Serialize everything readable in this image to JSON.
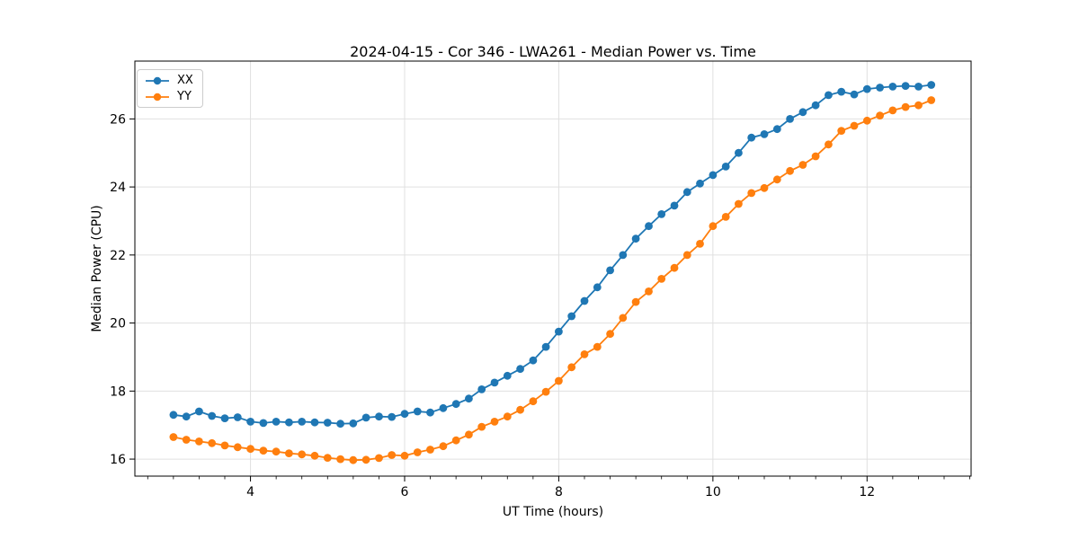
{
  "chart_data": {
    "type": "line",
    "title": "2024-04-15 - Cor 346 - LWA261 - Median Power vs. Time",
    "xlabel": "UT Time (hours)",
    "ylabel": "Median Power (CPU)",
    "xlim": [
      2.5,
      13.35
    ],
    "ylim": [
      15.5,
      27.7
    ],
    "xticks": [
      4,
      6,
      8,
      10,
      12
    ],
    "yticks": [
      16,
      18,
      20,
      22,
      24,
      26
    ],
    "x_minor_tick_step": 0.3333,
    "grid": true,
    "grid_color": "#e0e0e0",
    "legend_position": "upper left",
    "marker": "o",
    "x": [
      3.0,
      3.167,
      3.333,
      3.5,
      3.667,
      3.833,
      4.0,
      4.167,
      4.333,
      4.5,
      4.667,
      4.833,
      5.0,
      5.167,
      5.333,
      5.5,
      5.667,
      5.833,
      6.0,
      6.167,
      6.333,
      6.5,
      6.667,
      6.833,
      7.0,
      7.167,
      7.333,
      7.5,
      7.667,
      7.833,
      8.0,
      8.167,
      8.333,
      8.5,
      8.667,
      8.833,
      9.0,
      9.167,
      9.333,
      9.5,
      9.667,
      9.833,
      10.0,
      10.167,
      10.333,
      10.5,
      10.667,
      10.833,
      11.0,
      11.167,
      11.333,
      11.5,
      11.667,
      11.833,
      12.0,
      12.167,
      12.333,
      12.5,
      12.667,
      12.833
    ],
    "series": [
      {
        "name": "XX",
        "color": "#1f77b4",
        "values": [
          17.3,
          17.25,
          17.4,
          17.27,
          17.2,
          17.23,
          17.1,
          17.06,
          17.1,
          17.08,
          17.1,
          17.08,
          17.07,
          17.04,
          17.05,
          17.22,
          17.25,
          17.24,
          17.33,
          17.4,
          17.37,
          17.5,
          17.62,
          17.78,
          18.05,
          18.25,
          18.45,
          18.65,
          18.9,
          19.3,
          19.75,
          20.2,
          20.65,
          21.05,
          21.55,
          22.0,
          22.48,
          22.85,
          23.2,
          23.45,
          23.85,
          24.1,
          24.35,
          24.6,
          25.0,
          25.45,
          25.55,
          25.7,
          26.0,
          26.2,
          26.4,
          26.7,
          26.8,
          26.72,
          26.88,
          26.92,
          26.95,
          26.97,
          26.95,
          27.0
        ]
      },
      {
        "name": "YY",
        "color": "#ff7f0e",
        "values": [
          16.65,
          16.57,
          16.52,
          16.47,
          16.4,
          16.35,
          16.3,
          16.25,
          16.22,
          16.17,
          16.14,
          16.1,
          16.04,
          16.0,
          15.97,
          15.98,
          16.03,
          16.12,
          16.1,
          16.2,
          16.28,
          16.38,
          16.55,
          16.72,
          16.95,
          17.1,
          17.25,
          17.45,
          17.7,
          17.98,
          18.3,
          18.7,
          19.08,
          19.3,
          19.68,
          20.15,
          20.62,
          20.93,
          21.3,
          21.62,
          22.0,
          22.33,
          22.85,
          23.12,
          23.5,
          23.82,
          23.97,
          24.22,
          24.47,
          24.65,
          24.9,
          25.25,
          25.65,
          25.8,
          25.95,
          26.1,
          26.25,
          26.35,
          26.4,
          26.55
        ]
      }
    ]
  }
}
